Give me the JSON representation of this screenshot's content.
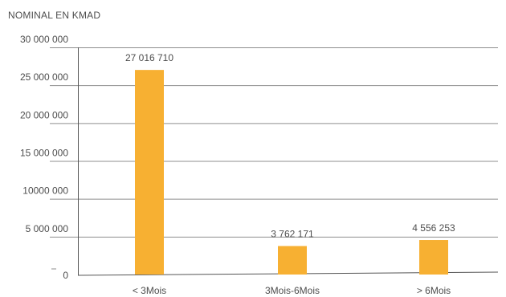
{
  "chart_data": {
    "type": "bar",
    "ylabel": "NOMINAL EN KMAD",
    "categories": [
      "< 3Mois",
      "3Mois-6Mois",
      "> 6Mois"
    ],
    "values": [
      27016710,
      3762171,
      4556253
    ],
    "data_labels": [
      "27 016 710",
      "3 762 171",
      "4 556 253"
    ],
    "ylim": [
      0,
      30000000
    ],
    "yticks": [
      0,
      5000000,
      10000000,
      15000000,
      20000000,
      25000000,
      30000000
    ],
    "ytick_labels": [
      "0",
      "5 000 000",
      "10000 000",
      "15 000 000",
      "20 000 000",
      "25 000 000",
      "30 000 000"
    ],
    "grid": true,
    "bar_color": "#f7b032",
    "grid_color": "#8f8f8f"
  }
}
